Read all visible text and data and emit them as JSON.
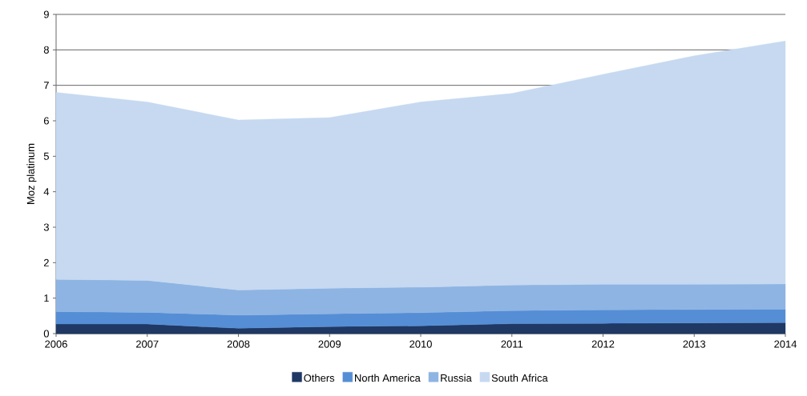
{
  "chart_data": {
    "type": "area",
    "stacked": true,
    "ylabel": "Moz platinum",
    "x": [
      2006,
      2007,
      2008,
      2009,
      2010,
      2011,
      2012,
      2013,
      2014
    ],
    "series": [
      {
        "name": "Others",
        "color": "#1f3864",
        "values": [
          0.27,
          0.27,
          0.15,
          0.2,
          0.22,
          0.28,
          0.29,
          0.3,
          0.31
        ]
      },
      {
        "name": "North America",
        "color": "#558ed5",
        "values": [
          0.35,
          0.33,
          0.37,
          0.36,
          0.37,
          0.37,
          0.38,
          0.38,
          0.38
        ]
      },
      {
        "name": "Russia",
        "color": "#8eb4e3",
        "values": [
          0.91,
          0.9,
          0.71,
          0.72,
          0.72,
          0.72,
          0.72,
          0.71,
          0.71
        ]
      },
      {
        "name": "South Africa",
        "color": "#c6d9f1",
        "values": [
          5.27,
          5.03,
          4.79,
          4.81,
          5.22,
          5.4,
          5.92,
          6.44,
          6.85
        ]
      }
    ],
    "xlim": [
      2006,
      2014
    ],
    "ylim": [
      0,
      9
    ],
    "xticks": [
      2006,
      2007,
      2008,
      2009,
      2010,
      2011,
      2012,
      2013,
      2014
    ],
    "yticks": [
      0,
      1,
      2,
      3,
      4,
      5,
      6,
      7,
      8,
      9
    ],
    "grid": "y",
    "legend": "bottom"
  }
}
